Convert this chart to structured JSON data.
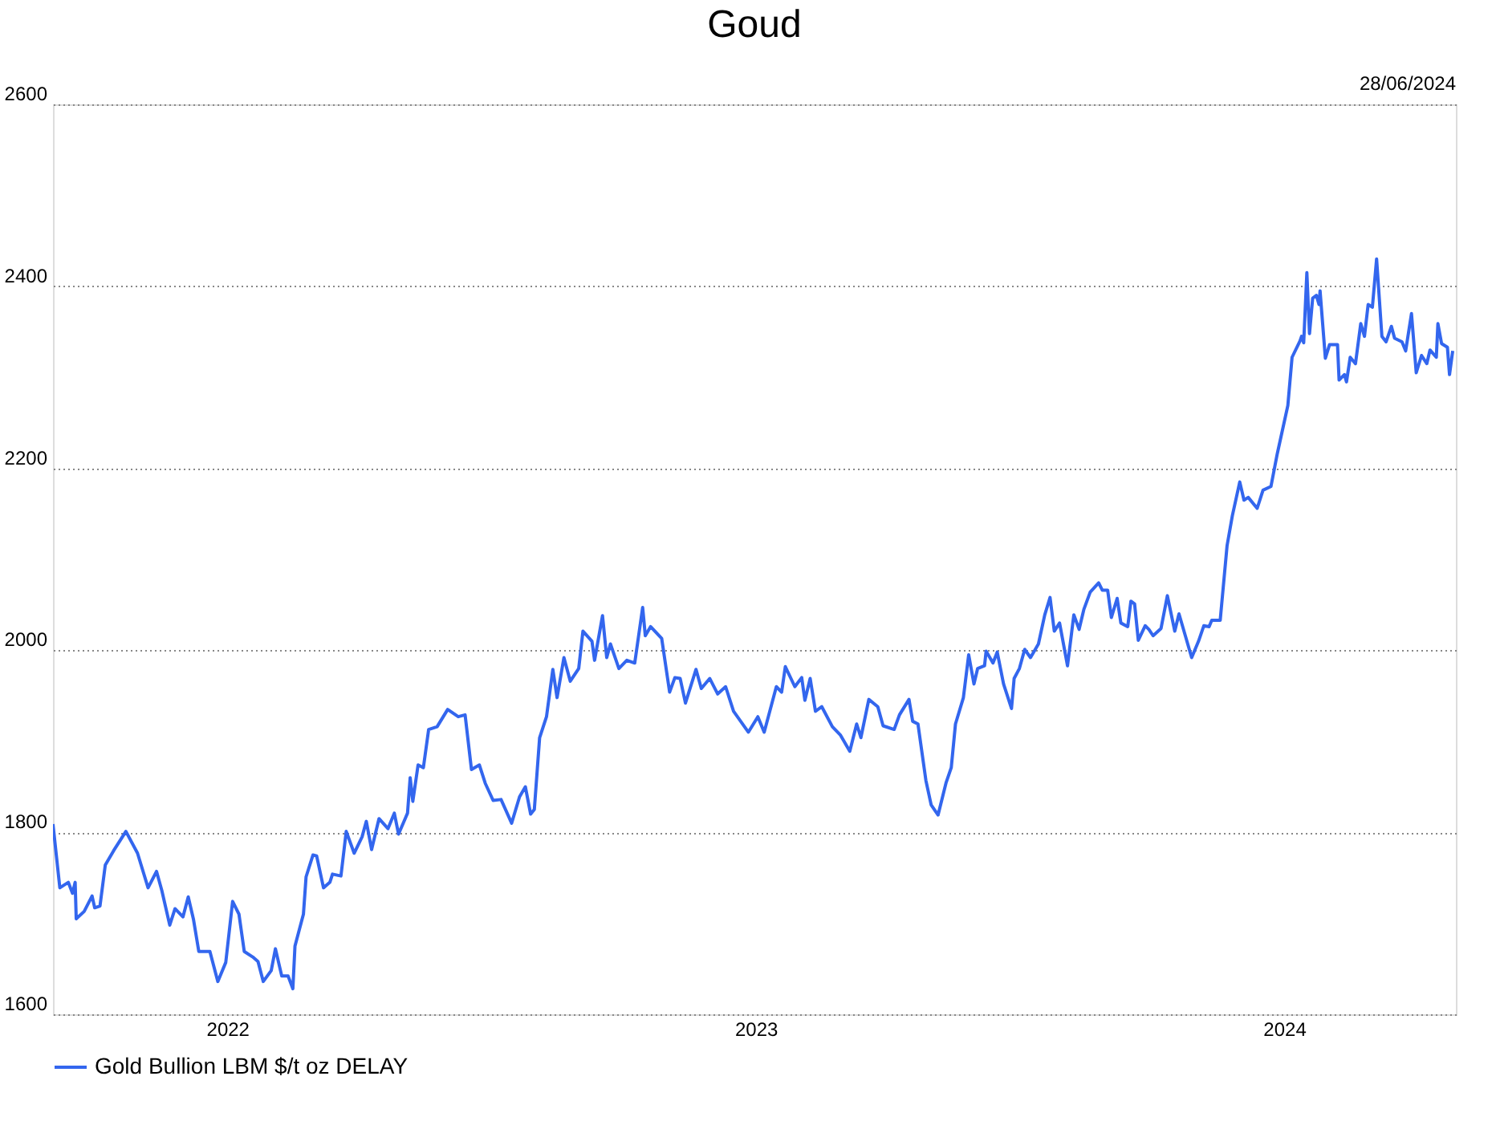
{
  "chart_data": {
    "type": "line",
    "title": "Goud",
    "annotations": [
      "28/06/2024"
    ],
    "xlim": [
      2021.67,
      2024.325
    ],
    "xticks": [
      2022,
      2023,
      2024
    ],
    "ylim": [
      1600,
      2600
    ],
    "yticks": [
      1600,
      1800,
      2000,
      2200,
      2400,
      2600
    ],
    "grid": "y",
    "legend": "bottom left",
    "marker": "none",
    "line_style": "solid",
    "series": [
      {
        "name": "Gold Bullion LBM $/t oz DELAY",
        "color": "#3366ee",
        "x": [
          2021.67,
          2021.683,
          2021.699,
          2021.707,
          2021.712,
          2021.714,
          2021.729,
          2021.744,
          2021.749,
          2021.759,
          2021.769,
          2021.785,
          2021.808,
          2021.83,
          2021.85,
          2021.866,
          2021.876,
          2021.891,
          2021.901,
          2021.916,
          2021.926,
          2021.936,
          2021.946,
          2021.967,
          2021.982,
          2021.997,
          2022.01,
          2022.022,
          2022.032,
          2022.048,
          2022.058,
          2022.068,
          2022.083,
          2022.091,
          2022.103,
          2022.115,
          2022.124,
          2022.128,
          2022.144,
          2022.149,
          2022.162,
          2022.169,
          2022.182,
          2022.194,
          2022.199,
          2022.215,
          2022.225,
          2022.24,
          2022.255,
          2022.263,
          2022.273,
          2022.287,
          2022.304,
          2022.316,
          2022.324,
          2022.341,
          2022.346,
          2022.351,
          2022.361,
          2022.371,
          2022.381,
          2022.397,
          2022.417,
          2022.437,
          2022.45,
          2022.462,
          2022.477,
          2022.488,
          2022.503,
          2022.518,
          2022.538,
          2022.553,
          2022.564,
          2022.574,
          2022.581,
          2022.591,
          2022.604,
          2022.616,
          2022.624,
          2022.637,
          2022.649,
          2022.665,
          2022.673,
          2022.69,
          2022.695,
          2022.71,
          2022.718,
          2022.725,
          2022.741,
          2022.756,
          2022.771,
          2022.786,
          2022.791,
          2022.801,
          2022.822,
          2022.837,
          2022.847,
          2022.857,
          2022.867,
          2022.887,
          2022.897,
          2022.913,
          2022.928,
          2022.943,
          2022.958,
          2022.986,
          2023.004,
          2023.016,
          2023.039,
          2023.049,
          2023.056,
          2023.074,
          2023.087,
          2023.093,
          2023.103,
          2023.113,
          2023.125,
          2023.145,
          2023.16,
          2023.178,
          2023.191,
          2023.199,
          2023.214,
          2023.231,
          2023.241,
          2023.262,
          2023.272,
          2023.29,
          2023.297,
          2023.307,
          2023.322,
          2023.332,
          2023.345,
          2023.36,
          2023.37,
          2023.378,
          2023.393,
          2023.403,
          2023.413,
          2023.42,
          2023.433,
          2023.436,
          2023.449,
          2023.457,
          2023.469,
          2023.484,
          2023.489,
          2023.499,
          2023.509,
          2023.52,
          2023.535,
          2023.547,
          2023.557,
          2023.565,
          2023.575,
          2023.59,
          2023.602,
          2023.612,
          2023.621,
          2023.633,
          2023.649,
          2023.656,
          2023.666,
          2023.673,
          2023.684,
          2023.691,
          2023.704,
          2023.71,
          2023.717,
          2023.724,
          2023.737,
          2023.744,
          2023.752,
          2023.767,
          2023.779,
          2023.793,
          2023.801,
          2023.813,
          2023.825,
          2023.838,
          2023.848,
          2023.858,
          2023.863,
          2023.879,
          2023.892,
          2023.902,
          2023.916,
          2023.924,
          2023.932,
          2023.949,
          2023.96,
          2023.975,
          2023.987,
          2024.007,
          2024.015,
          2024.03,
          2024.033,
          2024.037,
          2024.043,
          2024.048,
          2024.054,
          2024.061,
          2024.066,
          2024.068,
          2024.078,
          2024.086,
          2024.101,
          2024.104,
          2024.114,
          2024.118,
          2024.125,
          2024.135,
          2024.145,
          2024.152,
          2024.159,
          2024.167,
          2024.175,
          2024.185,
          2024.193,
          2024.203,
          2024.209,
          2024.223,
          2024.23,
          2024.241,
          2024.25,
          2024.26,
          2024.27,
          2024.276,
          2024.288,
          2024.291,
          2024.298,
          2024.309,
          2024.313,
          2024.319
        ],
        "values": [
          1809,
          1739,
          1745,
          1733,
          1745,
          1705,
          1713,
          1730,
          1717,
          1719,
          1764,
          1780,
          1801,
          1777,
          1739,
          1757,
          1736,
          1698,
          1716,
          1707,
          1729,
          1704,
          1669,
          1669,
          1636,
          1657,
          1724,
          1710,
          1669,
          1663,
          1658,
          1636,
          1648,
          1672,
          1642,
          1642,
          1628,
          1675,
          1710,
          1751,
          1775,
          1774,
          1739,
          1745,
          1754,
          1752,
          1801,
          1777,
          1795,
          1812,
          1781,
          1815,
          1804,
          1821,
          1798,
          1821,
          1860,
          1834,
          1874,
          1871,
          1913,
          1916,
          1935,
          1927,
          1929,
          1869,
          1874,
          1854,
          1835,
          1836,
          1810,
          1839,
          1850,
          1820,
          1825,
          1904,
          1927,
          1979,
          1948,
          1992,
          1966,
          1980,
          2021,
          2010,
          1989,
          2038,
          1992,
          2007,
          1980,
          1989,
          1986,
          2047,
          2016,
          2026,
          2013,
          1954,
          1970,
          1969,
          1942,
          1979,
          1958,
          1969,
          1952,
          1960,
          1933,
          1910,
          1927,
          1910,
          1960,
          1954,
          1982,
          1960,
          1970,
          1945,
          1969,
          1933,
          1938,
          1916,
          1907,
          1889,
          1919,
          1904,
          1946,
          1938,
          1917,
          1913,
          1929,
          1946,
          1922,
          1919,
          1857,
          1830,
          1819,
          1854,
          1871,
          1919,
          1948,
          1995,
          1963,
          1980,
          1983,
          1999,
          1986,
          1998,
          1963,
          1936,
          1969,
          1980,
          2001,
          1992,
          2007,
          2039,
          2058,
          2021,
          2030,
          1983,
          2039,
          2023,
          2045,
          2064,
          2074,
          2066,
          2066,
          2036,
          2057,
          2030,
          2026,
          2054,
          2051,
          2011,
          2027,
          2023,
          2016,
          2024,
          2060,
          2021,
          2040,
          2016,
          1992,
          2010,
          2027,
          2026,
          2033,
          2033,
          2115,
          2148,
          2185,
          2165,
          2168,
          2156,
          2176,
          2180,
          2216,
          2269,
          2322,
          2340,
          2345,
          2338,
          2415,
          2348,
          2387,
          2390,
          2380,
          2395,
          2321,
          2336,
          2336,
          2297,
          2303,
          2295,
          2322,
          2315,
          2359,
          2345,
          2380,
          2377,
          2430,
          2345,
          2339,
          2356,
          2343,
          2339,
          2329,
          2370,
          2305,
          2324,
          2315,
          2330,
          2322,
          2359,
          2337,
          2333,
          2303,
          2329
        ]
      }
    ]
  }
}
